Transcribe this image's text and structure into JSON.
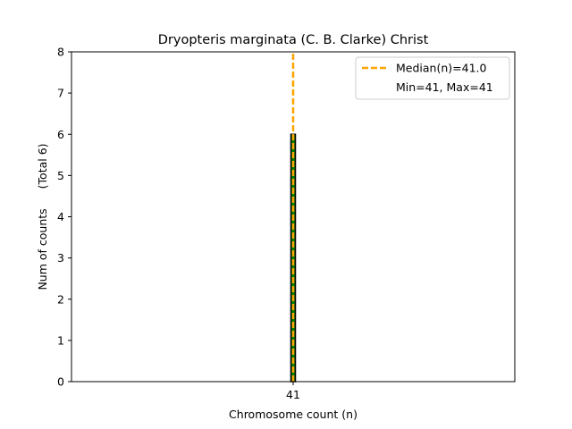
{
  "chart_data": {
    "type": "bar",
    "title": "Dryopteris marginata (C. B. Clarke) Christ",
    "xlabel": "Chromosome count (n)",
    "ylabel": "Num of counts",
    "ylabel_total": "(Total 6)",
    "categories": [
      "41"
    ],
    "values": [
      6
    ],
    "bar_x": [
      41
    ],
    "xlim": [
      35.5,
      46.5
    ],
    "ylim": [
      0,
      8
    ],
    "y_ticks": [
      0,
      1,
      2,
      3,
      4,
      5,
      6,
      7,
      8
    ],
    "median": 41.0,
    "grid": false,
    "legend_position": "top-right",
    "legend": [
      {
        "label": "Median(n)=41.0",
        "style": "dashed-line",
        "color": "#FFA500"
      },
      {
        "label": "Min=41, Max=41",
        "style": "none"
      }
    ],
    "colors": {
      "bar_fill": "#008000",
      "bar_edge": "#000000",
      "median_line": "#FFA500"
    }
  }
}
